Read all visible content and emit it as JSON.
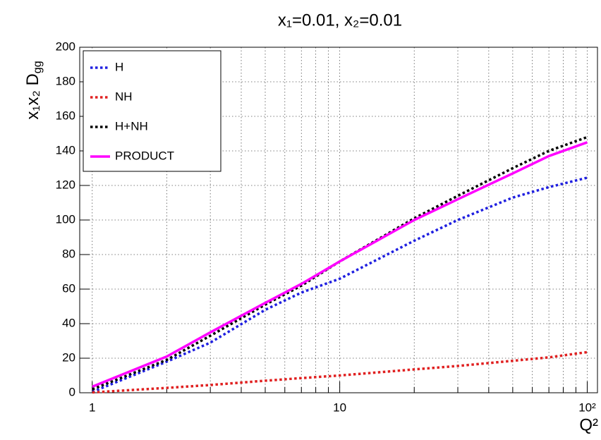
{
  "chart_data": {
    "type": "line",
    "title": "x₁=0.01,  x₂=0.01",
    "ylabel": [
      "x₁x₂ D",
      "gg"
    ],
    "xlabel": "Q²",
    "log_x": true,
    "grid": true,
    "legend": "top-left",
    "x": [
      1,
      2,
      3,
      5,
      7,
      10,
      20,
      30,
      50,
      70,
      100
    ],
    "series": [
      {
        "name": "H",
        "color": "#1f1fe0",
        "dash": true,
        "values": [
          0.5,
          18,
          29,
          48,
          58,
          66,
          88,
          100,
          113,
          119,
          124.5
        ]
      },
      {
        "name": "NH",
        "color": "#e02020",
        "dash": true,
        "values": [
          0.2,
          2.8,
          4.5,
          7,
          8.5,
          10,
          13.5,
          15.5,
          18.5,
          20.5,
          23.5
        ]
      },
      {
        "name": "H+NH",
        "color": "#000000",
        "dash": true,
        "values": [
          2,
          19,
          33,
          51,
          62,
          76,
          101,
          114,
          130,
          140,
          148
        ]
      },
      {
        "name": "PRODUCT",
        "color": "#ff00ff",
        "dash": false,
        "values": [
          3.5,
          21,
          35,
          52,
          63,
          76,
          100,
          112,
          127,
          137,
          145
        ]
      }
    ],
    "xlim": [
      0.89,
      110
    ],
    "xticks": [
      1,
      10,
      {
        "value": 100,
        "label": "10²"
      }
    ],
    "xminor": [
      2,
      3,
      4,
      5,
      6,
      7,
      8,
      9,
      20,
      30,
      40,
      50,
      60,
      70,
      80,
      90
    ],
    "ylim": [
      0,
      200
    ],
    "yticks": [
      0,
      20,
      40,
      60,
      80,
      100,
      120,
      140,
      160,
      180,
      200
    ]
  }
}
